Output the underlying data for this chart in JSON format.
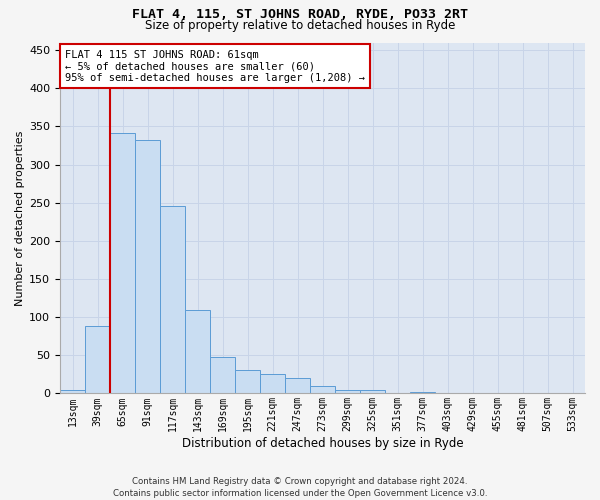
{
  "title": "FLAT 4, 115, ST JOHNS ROAD, RYDE, PO33 2RT",
  "subtitle": "Size of property relative to detached houses in Ryde",
  "xlabel": "Distribution of detached houses by size in Ryde",
  "ylabel": "Number of detached properties",
  "bar_labels": [
    "13sqm",
    "39sqm",
    "65sqm",
    "91sqm",
    "117sqm",
    "143sqm",
    "169sqm",
    "195sqm",
    "221sqm",
    "247sqm",
    "273sqm",
    "299sqm",
    "325sqm",
    "351sqm",
    "377sqm",
    "403sqm",
    "429sqm",
    "455sqm",
    "481sqm",
    "507sqm",
    "533sqm"
  ],
  "bar_values": [
    5,
    88,
    341,
    332,
    246,
    110,
    48,
    31,
    26,
    20,
    10,
    5,
    4,
    1,
    2,
    1,
    0,
    0,
    0,
    0,
    0
  ],
  "bar_color": "#c9ddf2",
  "bar_edge_color": "#5b9bd5",
  "vline_color": "#cc0000",
  "annotation_text": "FLAT 4 115 ST JOHNS ROAD: 61sqm\n← 5% of detached houses are smaller (60)\n95% of semi-detached houses are larger (1,208) →",
  "annotation_box_color": "#ffffff",
  "annotation_box_edge": "#cc0000",
  "ylim": [
    0,
    460
  ],
  "yticks": [
    0,
    50,
    100,
    150,
    200,
    250,
    300,
    350,
    400,
    450
  ],
  "grid_color": "#c8d4e8",
  "bg_color": "#dde6f2",
  "fig_bg_color": "#f5f5f5",
  "footer_line1": "Contains HM Land Registry data © Crown copyright and database right 2024.",
  "footer_line2": "Contains public sector information licensed under the Open Government Licence v3.0."
}
